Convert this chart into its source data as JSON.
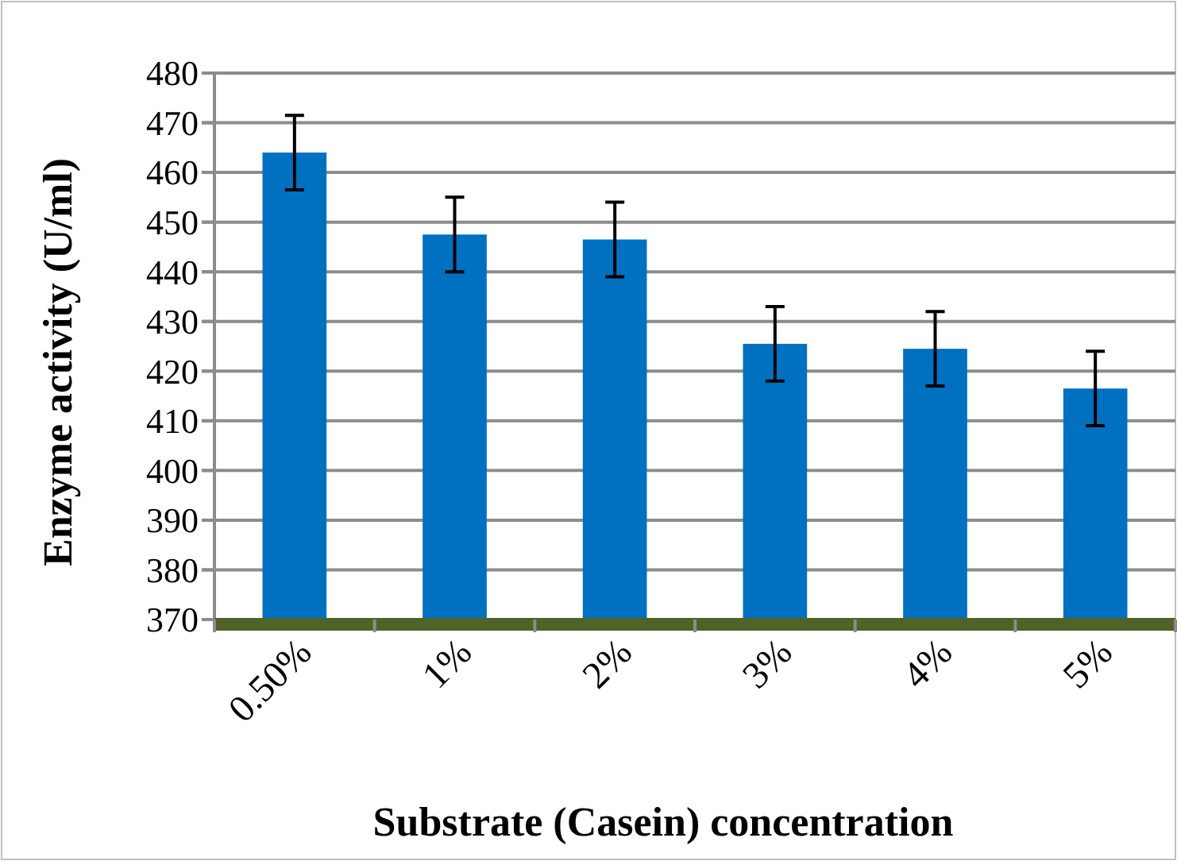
{
  "chart_data": {
    "type": "bar",
    "xlabel": "Substrate (Casein) concentration",
    "ylabel": "Enzyme activity (U/ml)",
    "categories": [
      "0.50%",
      "1%",
      "2%",
      "3%",
      "4%",
      "5%"
    ],
    "values": [
      464,
      447.5,
      446.5,
      425.5,
      424.5,
      416.5
    ],
    "errors": [
      7.5,
      7.5,
      7.5,
      7.5,
      7.5,
      7.5
    ],
    "color": "#0070c0",
    "ylim": [
      370,
      480
    ],
    "yticks": [
      370,
      380,
      390,
      400,
      410,
      420,
      430,
      440,
      450,
      460,
      470,
      480
    ],
    "grid": "y"
  }
}
